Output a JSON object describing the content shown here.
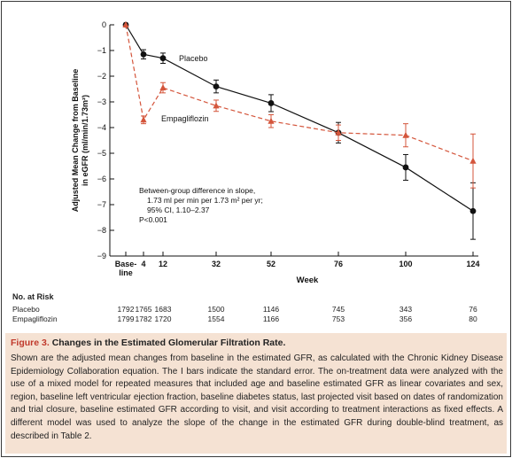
{
  "chart_data": {
    "type": "line",
    "ylabel": "Adjusted Mean Change from Baseline in eGFR (ml/min/1.73m²)",
    "xlabel": "Week",
    "ylim": [
      -9,
      0
    ],
    "yticks": [
      0,
      -1,
      -2,
      -3,
      -4,
      -5,
      -6,
      -7,
      -8,
      -9
    ],
    "ytick_labels": [
      "0",
      "−1",
      "−2",
      "−3",
      "−4",
      "−5",
      "−6",
      "−7",
      "−8",
      "−9"
    ],
    "xticks": [
      0,
      4,
      12,
      32,
      52,
      76,
      100,
      124
    ],
    "xtick_labels": [
      "Base-\nline",
      "4",
      "12",
      "32",
      "52",
      "76",
      "100",
      "124"
    ],
    "series": [
      {
        "name": "Placebo",
        "color": "#111111",
        "marker": "circle",
        "line": "solid",
        "x": [
          0,
          4,
          12,
          32,
          52,
          76,
          100,
          124
        ],
        "y": [
          0,
          -1.15,
          -1.3,
          -2.4,
          -3.05,
          -4.2,
          -5.55,
          -7.25
        ],
        "err": [
          0.05,
          0.18,
          0.2,
          0.25,
          0.33,
          0.4,
          0.5,
          1.1
        ]
      },
      {
        "name": "Empagliflozin",
        "color": "#d4553b",
        "marker": "triangle",
        "line": "dashed",
        "x": [
          0,
          4,
          12,
          32,
          52,
          76,
          100,
          124
        ],
        "y": [
          0,
          -3.7,
          -2.45,
          -3.15,
          -3.75,
          -4.2,
          -4.3,
          -5.3
        ],
        "err": [
          0.05,
          0.15,
          0.2,
          0.22,
          0.25,
          0.3,
          0.45,
          1.05
        ]
      }
    ],
    "annotation": {
      "lines": [
        "Between-group difference in slope,",
        "1.73 ml per min per 1.73 m² per yr;",
        "95% CI, 1.10–2.37",
        "P<0.001"
      ]
    }
  },
  "risk_table": {
    "header": "No. at Risk",
    "rows": [
      {
        "label": "Placebo",
        "values": [
          "1792",
          "1765",
          "1683",
          "1500",
          "1146",
          "745",
          "343",
          "76"
        ]
      },
      {
        "label": "Empagliflozin",
        "values": [
          "1799",
          "1782",
          "1720",
          "1554",
          "1166",
          "753",
          "356",
          "80"
        ]
      }
    ]
  },
  "caption": {
    "figure_label": "Figure 3.",
    "title": "Changes in the Estimated Glomerular Filtration Rate.",
    "body": "Shown are the adjusted mean changes from baseline in the estimated GFR, as calculated with the Chronic Kidney Disease Epidemiology Collaboration equation. The I bars indicate the standard error. The on-treatment data were analyzed with the use of a mixed model for repeated measures that included age and baseline estimated GFR as linear covariates and sex, region, baseline left ventricular ejection fraction, baseline diabetes status, last projected visit based on dates of randomization and trial closure, baseline estimated GFR according to visit, and visit according to treatment interactions as fixed effects. A different model was used to analyze the slope of the change in the estimated GFR during double-blind treatment, as described in Table 2."
  }
}
